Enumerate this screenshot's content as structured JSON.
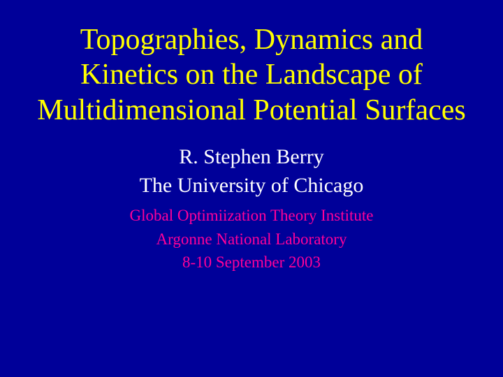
{
  "slide": {
    "background_color": "#000099",
    "title": {
      "text": "Topographies, Dynamics and Kinetics on the Landscape of Multidimensional Potential Surfaces",
      "color": "#ffff00",
      "fontsize": 42
    },
    "author": {
      "name": "R. Stephen Berry",
      "affiliation": "The University of Chicago",
      "color": "#ffffff",
      "fontsize": 30
    },
    "venue": {
      "line1": "Global Optimiization Theory Institute",
      "line2": "Argonne National Laboratory",
      "line3": "8-10 September 2003",
      "color": "#ff0099",
      "fontsize": 23
    }
  }
}
